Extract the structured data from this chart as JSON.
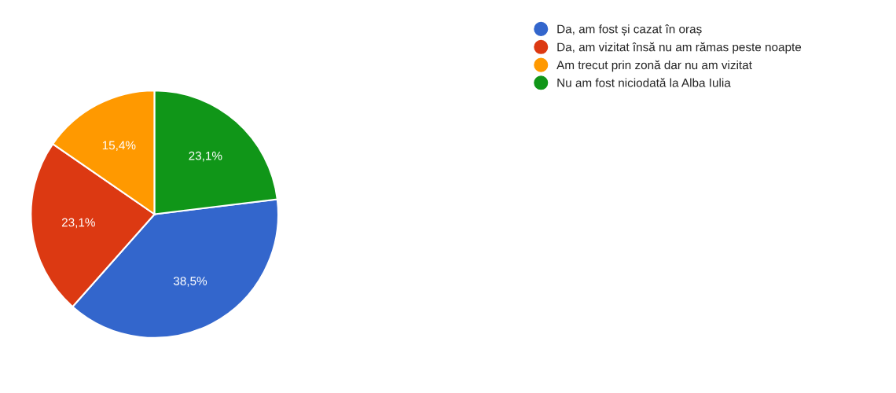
{
  "chart_data": {
    "type": "pie",
    "categories": [
      "Da, am fost și cazat în oraș",
      "Da, am vizitat însă nu am rămas peste noapte",
      "Am trecut prin zonă dar nu am vizitat",
      "Nu am fost niciodată la Alba Iulia"
    ],
    "values": [
      38.5,
      23.1,
      15.4,
      23.1
    ],
    "value_labels": [
      "38,5%",
      "23,1%",
      "15,4%",
      "23,1%"
    ],
    "colors": [
      "#3366cc",
      "#dc3912",
      "#ff9900",
      "#109618"
    ],
    "legend": "top right"
  }
}
